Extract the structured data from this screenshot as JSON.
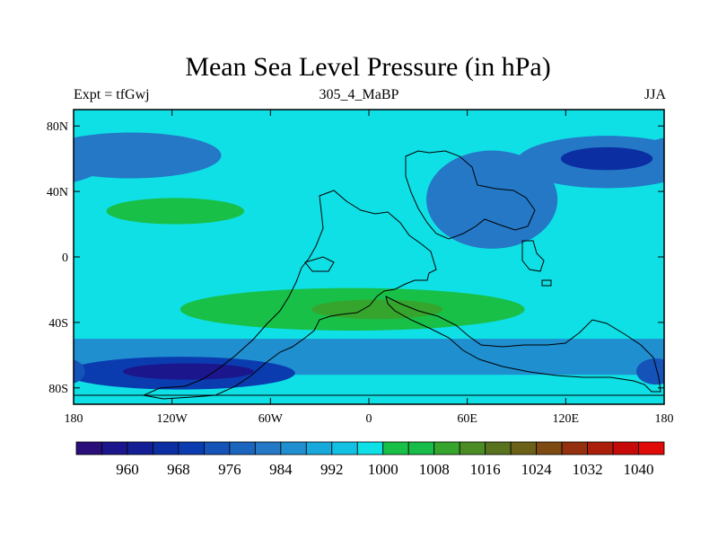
{
  "title": "Mean Sea Level Pressure (in hPa)",
  "left_label": "Expt = tfGwj",
  "center_label": "305_4_MaBP",
  "right_label": "JJA",
  "chart_data": {
    "type": "heatmap",
    "title": "Mean Sea Level Pressure (in hPa)",
    "units": "hPa",
    "x_range": [
      -180,
      180
    ],
    "y_range": [
      -90,
      90
    ],
    "x_ticks": [
      {
        "value": -180,
        "label": "180"
      },
      {
        "value": -120,
        "label": "120W"
      },
      {
        "value": -60,
        "label": "60W"
      },
      {
        "value": 0,
        "label": "0"
      },
      {
        "value": 60,
        "label": "60E"
      },
      {
        "value": 120,
        "label": "120E"
      },
      {
        "value": 180,
        "label": "180"
      }
    ],
    "y_ticks": [
      {
        "value": 80,
        "label": "80N"
      },
      {
        "value": 40,
        "label": "40N"
      },
      {
        "value": 0,
        "label": "0"
      },
      {
        "value": -40,
        "label": "40S"
      },
      {
        "value": -80,
        "label": "80S"
      }
    ],
    "colorbar": {
      "levels": [
        956,
        960,
        964,
        968,
        972,
        976,
        980,
        984,
        988,
        992,
        996,
        1000,
        1004,
        1008,
        1012,
        1016,
        1020,
        1024,
        1028,
        1032,
        1036,
        1040,
        1044
      ],
      "colors": [
        "#2a0f7a",
        "#1b168c",
        "#141f96",
        "#0c2ea3",
        "#0a3cb0",
        "#1553b8",
        "#1b65bf",
        "#2478c6",
        "#1f8fd0",
        "#17a8dc",
        "#12c0e4",
        "#0fe0e6",
        "#18c048",
        "#18bc48",
        "#36a52d",
        "#4c8c25",
        "#58721e",
        "#6c6018",
        "#7d4a12",
        "#94300e",
        "#aa1e0a",
        "#c60a08",
        "#e00a08"
      ],
      "labels": [
        {
          "index": 1,
          "text": "960"
        },
        {
          "index": 3,
          "text": "968"
        },
        {
          "index": 5,
          "text": "976"
        },
        {
          "index": 7,
          "text": "984"
        },
        {
          "index": 9,
          "text": "992"
        },
        {
          "index": 11,
          "text": "1000"
        },
        {
          "index": 13,
          "text": "1008"
        },
        {
          "index": 15,
          "text": "1016"
        },
        {
          "index": 17,
          "text": "1024"
        },
        {
          "index": 19,
          "text": "1032"
        },
        {
          "index": 21,
          "text": "1040"
        }
      ]
    },
    "regions": [
      {
        "name": "north-low-west",
        "kind": "ellipse",
        "lon": -145,
        "lat": 62,
        "rx": 55,
        "ry": 14,
        "value": 986
      },
      {
        "name": "north-low-east",
        "kind": "ellipse",
        "lon": 145,
        "lat": 58,
        "rx": 55,
        "ry": 16,
        "value": 986
      },
      {
        "name": "north-low-east-core",
        "kind": "ellipse",
        "lon": 145,
        "lat": 60,
        "rx": 28,
        "ry": 7,
        "value": 970
      },
      {
        "name": "continent-north-low",
        "kind": "ellipse",
        "lon": 75,
        "lat": 35,
        "rx": 40,
        "ry": 30,
        "value": 986
      },
      {
        "name": "north-high",
        "kind": "ellipse",
        "lon": -118,
        "lat": 28,
        "rx": 42,
        "ry": 8,
        "value": 1006
      },
      {
        "name": "south-high-band",
        "kind": "ellipse",
        "lon": -10,
        "lat": -32,
        "rx": 105,
        "ry": 13,
        "value": 1006
      },
      {
        "name": "south-high-core",
        "kind": "ellipse",
        "lon": 5,
        "lat": -32,
        "rx": 40,
        "ry": 6,
        "value": 1014
      },
      {
        "name": "south-ring",
        "kind": "band",
        "lat_top": -50,
        "lat_bottom": -72,
        "value": 988
      },
      {
        "name": "south-low-west",
        "kind": "ellipse",
        "lon": -115,
        "lat": -71,
        "rx": 70,
        "ry": 10,
        "value": 972
      },
      {
        "name": "south-low-west-core",
        "kind": "ellipse",
        "lon": -110,
        "lat": -70,
        "rx": 40,
        "ry": 5,
        "value": 960
      },
      {
        "name": "south-low-east",
        "kind": "ellipse",
        "lon": 175,
        "lat": -70,
        "rx": 12,
        "ry": 8,
        "value": 976
      }
    ]
  }
}
